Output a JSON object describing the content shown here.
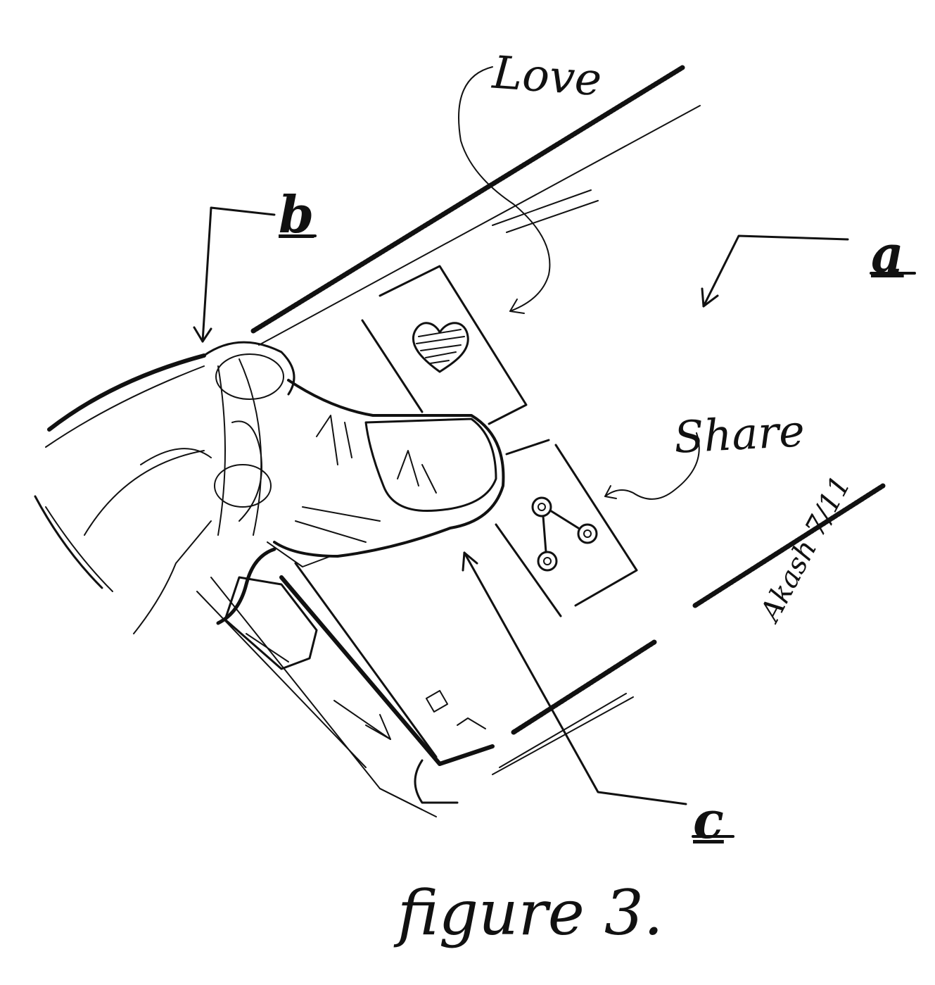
{
  "labels": {
    "love": "Love",
    "share": "Share",
    "a": "a",
    "b": "b",
    "c": "c",
    "signature": "Akash 7/11",
    "caption": "figure 3."
  },
  "icons": {
    "love_button": "heart-icon",
    "share_button": "share-icon"
  },
  "colors": {
    "ink": "#111111",
    "paper": "#ffffff"
  }
}
